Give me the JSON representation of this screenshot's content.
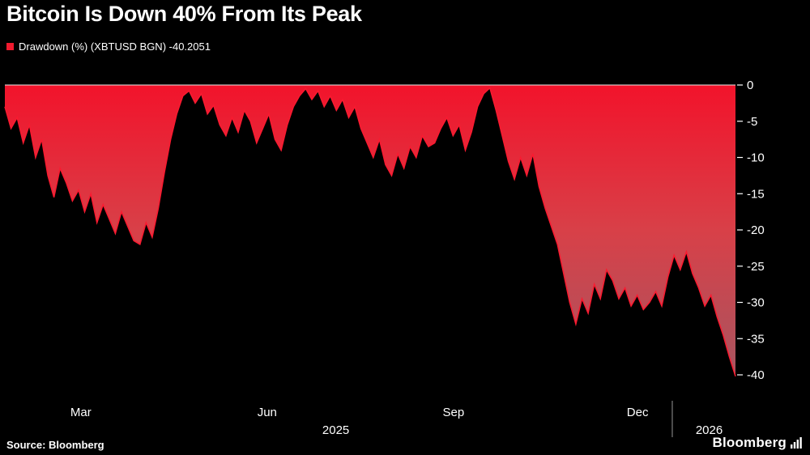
{
  "footer": {
    "source": "Source: Bloomberg",
    "brand": "Bloomberg"
  },
  "chart_data": {
    "type": "area",
    "title": "Bitcoin Is Down 40% From Its Peak",
    "legend_label": "Drawdown (%) (XBTUSD BGN) -40.2051",
    "series_name": "Drawdown (%) (XBTUSD BGN)",
    "last_value": -40.2051,
    "ylabel": "",
    "xlabel": "",
    "ylim": [
      0,
      -40
    ],
    "yticks": [
      0,
      -5,
      -10,
      -15,
      -20,
      -25,
      -30,
      -35,
      -40
    ],
    "xticks": [
      {
        "label": "Mar",
        "t": 0.104
      },
      {
        "label": "Jun",
        "t": 0.359
      },
      {
        "label": "Sep",
        "t": 0.614
      },
      {
        "label": "Dec",
        "t": 0.866
      }
    ],
    "year_labels": [
      {
        "label": "2025",
        "t": 0.453
      },
      {
        "label": "2026",
        "t": 0.964
      }
    ],
    "year_divider_t": 0.9135,
    "legend_position": "top-left",
    "grid": false,
    "series_color": "#f01a2e",
    "line_color": "#fa1a30",
    "zero_line_color": "#e9e9e9",
    "axis_text_color": "#ffffff",
    "divider_color": "#999999",
    "area_gradient": [
      "#f2132b",
      "#d84048",
      "#a85560"
    ],
    "values": [
      -3,
      -6,
      -4.5,
      -8,
      -5.5,
      -10,
      -7.5,
      -12.5,
      -15.5,
      -11.5,
      -13.5,
      -16,
      -14.5,
      -17.5,
      -15,
      -19,
      -16.5,
      -18.5,
      -20.5,
      -17.5,
      -19.5,
      -21.5,
      -22,
      -19,
      -21,
      -17,
      -12,
      -7.5,
      -4,
      -1.5,
      -0.8,
      -2.5,
      -1.2,
      -4,
      -2.8,
      -5.5,
      -7,
      -4.5,
      -6.5,
      -3.5,
      -5,
      -8,
      -6,
      -4,
      -7.5,
      -9,
      -5.5,
      -3,
      -1.5,
      -0.5,
      -2,
      -0.8,
      -3,
      -1.5,
      -3.5,
      -2,
      -4.5,
      -3,
      -6,
      -8,
      -10,
      -7.5,
      -11,
      -12.5,
      -9.5,
      -11.5,
      -8.5,
      -10,
      -7,
      -8.5,
      -8,
      -6,
      -4.5,
      -7,
      -5.5,
      -9,
      -6.5,
      -3,
      -1.2,
      -0.4,
      -3.5,
      -7,
      -10.5,
      -13,
      -10,
      -12.5,
      -9.5,
      -14,
      -17,
      -19.5,
      -22,
      -26,
      -30,
      -33,
      -29.5,
      -31.5,
      -27.5,
      -29.5,
      -25.5,
      -27,
      -29.5,
      -28,
      -30.5,
      -29,
      -31,
      -30,
      -28.5,
      -30.5,
      -26.5,
      -23.5,
      -25.5,
      -23,
      -26,
      -28,
      -30.5,
      -29,
      -32,
      -34.5,
      -37.5,
      -40.2
    ]
  }
}
